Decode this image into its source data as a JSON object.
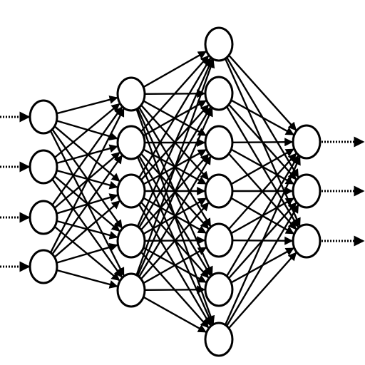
{
  "diagram": {
    "type": "feedforward-neural-network",
    "layer_sizes": [
      4,
      5,
      7,
      3
    ],
    "connectivity": "fully-connected",
    "input_arrows": 4,
    "output_arrows": 3,
    "colors": {
      "background": "#ffffff",
      "stroke": "#000000",
      "node_fill": "#ffffff"
    }
  }
}
